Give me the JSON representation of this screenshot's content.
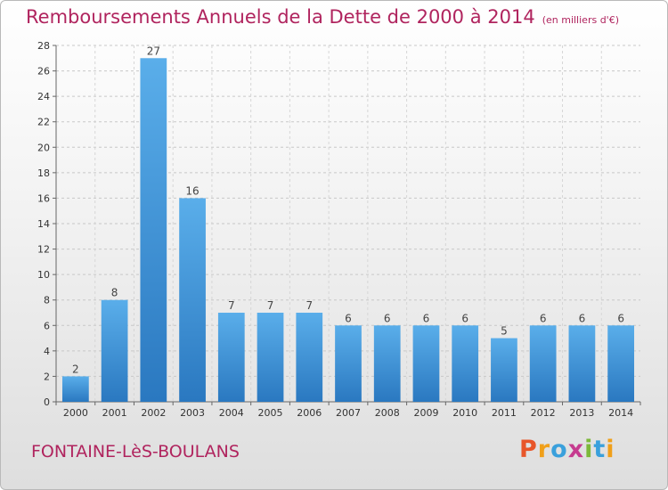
{
  "header": {
    "title": "Remboursements Annuels de la Dette de 2000 à 2014",
    "unit": "(en milliers d'€)"
  },
  "footer": {
    "commune": "FONTAINE-LèS-BOULANS",
    "brand_letters": [
      "P",
      "r",
      "o",
      "x",
      "i",
      "t",
      "i"
    ],
    "brand_colors": [
      "#e8562a",
      "#f0a01a",
      "#3aa0dc",
      "#c63b8f",
      "#7cb83a",
      "#3aa0dc",
      "#f0a01a"
    ]
  },
  "chart_data": {
    "type": "bar",
    "title": "Remboursements Annuels de la Dette de 2000 à 2014",
    "categories": [
      "2000",
      "2001",
      "2002",
      "2003",
      "2004",
      "2005",
      "2006",
      "2007",
      "2008",
      "2009",
      "2010",
      "2011",
      "2012",
      "2013",
      "2014"
    ],
    "values": [
      2,
      8,
      27,
      16,
      7,
      7,
      7,
      6,
      6,
      6,
      6,
      5,
      6,
      6,
      6
    ],
    "ylim": [
      0,
      28
    ],
    "yticks": [
      0,
      2,
      4,
      6,
      8,
      10,
      12,
      14,
      16,
      18,
      20,
      22,
      24,
      26,
      28
    ],
    "grid": true,
    "bar_color_top": "#5aaeea",
    "bar_color_bottom": "#2a78c0"
  }
}
